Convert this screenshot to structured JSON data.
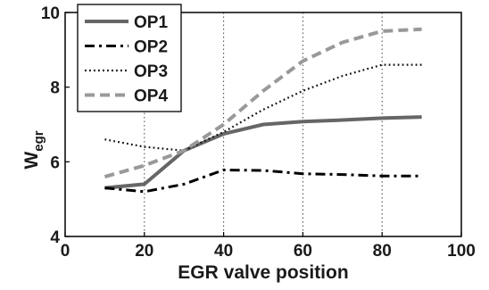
{
  "chart_data": {
    "type": "line",
    "title": "",
    "xlabel": "EGR valve position",
    "ylabel_main": "W",
    "ylabel_sub": "egr",
    "xlim": [
      0,
      100
    ],
    "ylim": [
      4,
      10
    ],
    "xticks": [
      0,
      20,
      40,
      60,
      80,
      100
    ],
    "yticks": [
      4,
      6,
      8,
      10
    ],
    "xtick_labels": [
      "0",
      "20",
      "40",
      "60",
      "80",
      "100"
    ],
    "ytick_labels": [
      "4",
      "6",
      "8",
      "10"
    ],
    "grid": "vertical dotted",
    "legend_position": "top-left",
    "series": [
      {
        "name": "OP1",
        "style": "solid",
        "color": "#666666",
        "x": [
          10,
          20,
          30,
          40,
          50,
          60,
          70,
          80,
          90
        ],
        "y": [
          5.3,
          5.4,
          6.3,
          6.75,
          7.0,
          7.08,
          7.12,
          7.17,
          7.2
        ]
      },
      {
        "name": "OP2",
        "style": "dashdot",
        "color": "#000000",
        "x": [
          10,
          20,
          30,
          40,
          50,
          60,
          70,
          80,
          90
        ],
        "y": [
          5.3,
          5.2,
          5.4,
          5.78,
          5.77,
          5.68,
          5.66,
          5.62,
          5.62
        ]
      },
      {
        "name": "OP3",
        "style": "dotted",
        "color": "#111111",
        "x": [
          10,
          20,
          30,
          40,
          50,
          60,
          70,
          80,
          90
        ],
        "y": [
          6.6,
          6.4,
          6.3,
          6.8,
          7.4,
          7.9,
          8.3,
          8.6,
          8.6
        ]
      },
      {
        "name": "OP4",
        "style": "dashed",
        "color": "#999999",
        "x": [
          10,
          20,
          30,
          40,
          50,
          60,
          70,
          80,
          90
        ],
        "y": [
          5.6,
          5.9,
          6.3,
          7.0,
          7.9,
          8.7,
          9.2,
          9.5,
          9.55
        ]
      }
    ]
  }
}
